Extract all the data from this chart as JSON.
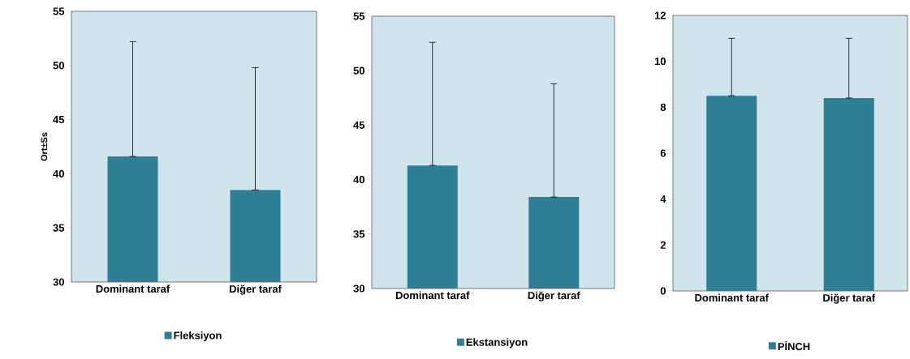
{
  "chart_data": [
    {
      "type": "bar",
      "ylabel": "Ort±Ss",
      "categories": [
        "Dominant taraf",
        "Diğer taraf"
      ],
      "series": [
        {
          "name": "Fleksiyon",
          "color": "#2e7f93",
          "values": [
            41.6,
            38.5
          ],
          "errors": [
            [
              41.6,
              52.2
            ],
            [
              38.5,
              49.8
            ]
          ]
        }
      ],
      "ylim": [
        30,
        55
      ],
      "yticks": [
        30,
        35,
        40,
        45,
        50,
        55
      ],
      "legend": "bottom"
    },
    {
      "type": "bar",
      "categories": [
        "Dominant taraf",
        "Diğer taraf"
      ],
      "series": [
        {
          "name": "Ekstansiyon",
          "color": "#2e7f93",
          "values": [
            41.3,
            38.4
          ],
          "errors": [
            [
              41.3,
              52.6
            ],
            [
              38.4,
              48.8
            ]
          ]
        }
      ],
      "ylim": [
        30,
        55
      ],
      "yticks": [
        30,
        35,
        40,
        45,
        50,
        55
      ],
      "legend": "bottom"
    },
    {
      "type": "bar",
      "categories": [
        "Dominant taraf",
        "Diğer taraf"
      ],
      "series": [
        {
          "name": "PİNCH",
          "color": "#2e7f93",
          "values": [
            8.5,
            8.4
          ],
          "errors": [
            [
              8.5,
              11.0
            ],
            [
              8.4,
              11.0
            ]
          ]
        }
      ],
      "ylim": [
        0,
        12
      ],
      "yticks": [
        0,
        2,
        4,
        6,
        8,
        10,
        12
      ],
      "legend": "bottom"
    }
  ]
}
